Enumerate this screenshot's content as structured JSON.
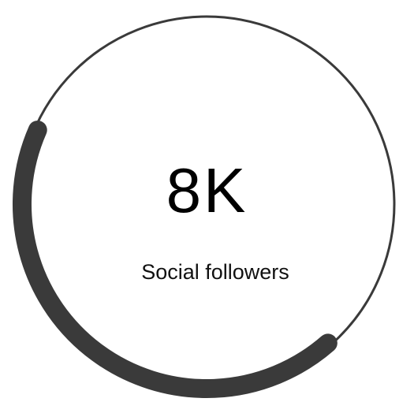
{
  "stat": {
    "value": "8K",
    "label": "Social followers"
  },
  "ring": {
    "progress_fraction": 0.43,
    "track_color": "#3a3a3a",
    "progress_color": "#3a3a3a"
  }
}
